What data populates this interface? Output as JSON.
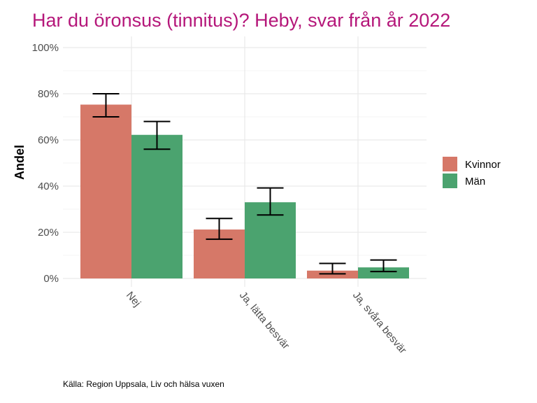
{
  "chart_data": {
    "type": "bar",
    "title": "Har du öronsus (tinnitus)? Heby, svar från år 2022",
    "ylabel": "Andel",
    "xlabel": "",
    "categories": [
      "Nej",
      "Ja, lätta besvär",
      "Ja, svåra besvär"
    ],
    "ylim": [
      0,
      100
    ],
    "yticks": [
      0,
      20,
      40,
      60,
      80,
      100
    ],
    "ytick_labels": [
      "0%",
      "20%",
      "40%",
      "60%",
      "80%",
      "100%"
    ],
    "series": [
      {
        "name": "Kvinnor",
        "color": "#d67868",
        "values": [
          75.3,
          21.2,
          3.4
        ],
        "ci_low": [
          70.0,
          17.0,
          2.0
        ],
        "ci_high": [
          80.0,
          26.0,
          6.5
        ]
      },
      {
        "name": "Män",
        "color": "#4ba36f",
        "values": [
          62.2,
          33.0,
          4.8
        ],
        "ci_low": [
          56.0,
          27.5,
          3.0
        ],
        "ci_high": [
          68.0,
          39.2,
          8.0
        ]
      }
    ],
    "legend_position": "right",
    "grid": true,
    "caption": "Källa: Region Uppsala, Liv och hälsa vuxen"
  }
}
